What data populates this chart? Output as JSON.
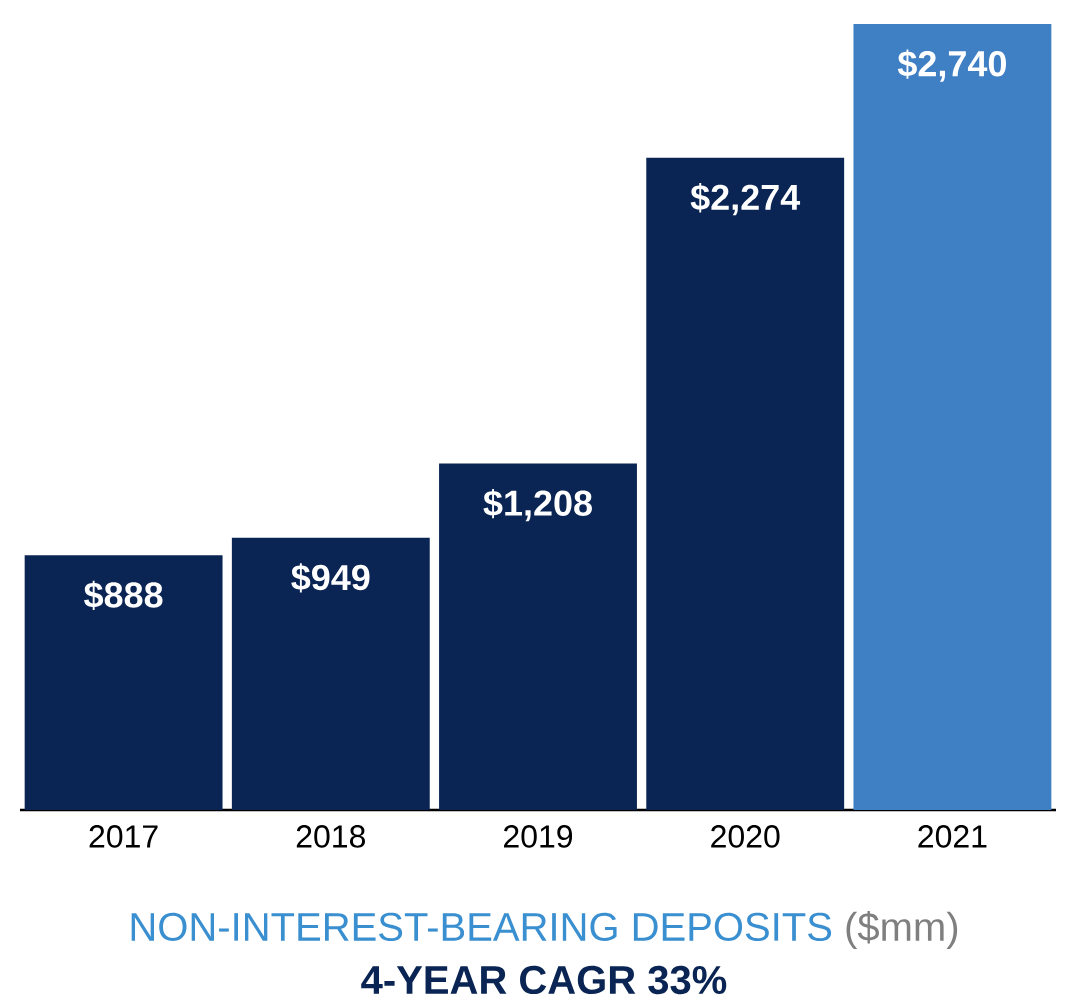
{
  "chart_data": {
    "type": "bar",
    "title": "NON-INTEREST-BEARING DEPOSITS",
    "subtitle": "($mm)",
    "categories": [
      "2017",
      "2018",
      "2019",
      "2020",
      "2021"
    ],
    "values": [
      888,
      949,
      1208,
      2274,
      2740
    ],
    "value_labels": [
      "$888",
      "$949",
      "$1,208",
      "$2,274",
      "$2,740"
    ],
    "colors": [
      "#0a2553",
      "#0a2553",
      "#0a2553",
      "#0a2553",
      "#3f7fc4"
    ],
    "annotations": [
      "4-YEAR CAGR 33%"
    ]
  }
}
